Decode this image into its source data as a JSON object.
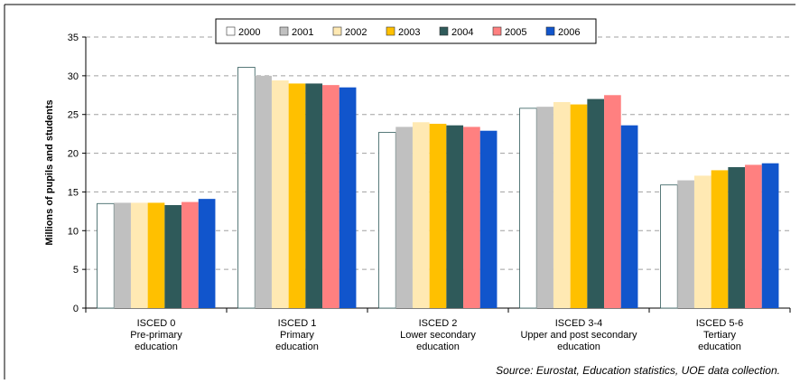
{
  "chart_data": {
    "type": "bar",
    "ylabel": "Millions of pupils and students",
    "ylim": [
      0,
      35
    ],
    "yticks": [
      0,
      5,
      10,
      15,
      20,
      25,
      30,
      35
    ],
    "grid": true,
    "legend_position": "top-center",
    "categories": [
      [
        "ISCED 0",
        "Pre-primary",
        "education"
      ],
      [
        "ISCED 1",
        "Primary",
        "education"
      ],
      [
        "ISCED 2",
        "Lower secondary",
        "education"
      ],
      [
        "ISCED 3-4",
        "Upper and post secondary",
        "education"
      ],
      [
        "ISCED 5-6",
        "Tertiary",
        "education"
      ]
    ],
    "series": [
      {
        "name": "2000",
        "color": "#ffffff",
        "values": [
          13.5,
          31.1,
          22.7,
          25.8,
          15.9
        ]
      },
      {
        "name": "2001",
        "color": "#c0c0c0",
        "values": [
          13.6,
          30.0,
          23.4,
          26.0,
          16.5
        ]
      },
      {
        "name": "2002",
        "color": "#ffe9b3",
        "values": [
          13.6,
          29.4,
          24.0,
          26.6,
          17.1
        ]
      },
      {
        "name": "2003",
        "color": "#ffc000",
        "values": [
          13.6,
          29.0,
          23.8,
          26.3,
          17.8
        ]
      },
      {
        "name": "2004",
        "color": "#2f5a5a",
        "values": [
          13.3,
          29.0,
          23.6,
          27.0,
          18.2
        ]
      },
      {
        "name": "2005",
        "color": "#ff8080",
        "values": [
          13.7,
          28.8,
          23.4,
          27.5,
          18.5
        ]
      },
      {
        "name": "2006",
        "color": "#1155cc",
        "values": [
          14.1,
          28.5,
          22.9,
          23.6,
          18.7
        ]
      }
    ],
    "source": "Source: Eurostat, Education statistics, UOE data collection."
  }
}
